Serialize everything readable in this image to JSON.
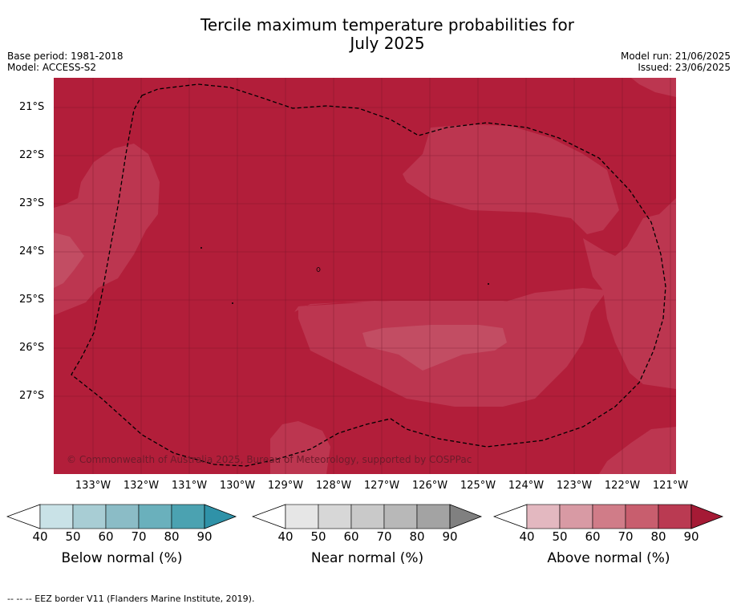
{
  "title_line1": "Tercile maximum temperature probabilities for",
  "title_line2": "July 2025",
  "meta": {
    "base_period": "Base period: 1981-2018",
    "model": "Model: ACCESS-S2",
    "model_run": "Model run: 21/06/2025",
    "issued": "Issued: 23/06/2025"
  },
  "map": {
    "copyright": "© Commonwealth of Australia 2025, Bureau of Meteorology, supported by COSPPac",
    "background_color": "#b21e3a",
    "lat_labels": [
      "21°S",
      "22°S",
      "23°S",
      "24°S",
      "25°S",
      "26°S",
      "27°S"
    ],
    "lon_labels": [
      "133°W",
      "132°W",
      "131°W",
      "130°W",
      "129°W",
      "128°W",
      "127°W",
      "126°W",
      "125°W",
      "124°W",
      "123°W",
      "122°W",
      "121°W"
    ]
  },
  "colorbars": [
    {
      "name": "below",
      "title": "Below normal (%)",
      "ticks": [
        "40",
        "50",
        "60",
        "70",
        "80",
        "90"
      ],
      "colors": [
        "#c9e2e7",
        "#a8cdd4",
        "#8bbcc6",
        "#6ab0bc",
        "#4ba2b1",
        "#2f92a8"
      ]
    },
    {
      "name": "near",
      "title": "Near normal (%)",
      "ticks": [
        "40",
        "50",
        "60",
        "70",
        "80",
        "90"
      ],
      "colors": [
        "#e6e6e6",
        "#d7d7d7",
        "#c9c9c9",
        "#b8b8b8",
        "#a3a3a3",
        "#808080"
      ]
    },
    {
      "name": "above",
      "title": "Above normal (%)",
      "ticks": [
        "40",
        "50",
        "60",
        "70",
        "80",
        "90"
      ],
      "colors": [
        "#e3b8c0",
        "#d89aa4",
        "#d07c88",
        "#c85e6e",
        "#ba3a52",
        "#a51a35"
      ]
    }
  ],
  "footer": "--  --  -- EEZ border V11 (Flanders Marine Institute, 2019)."
}
